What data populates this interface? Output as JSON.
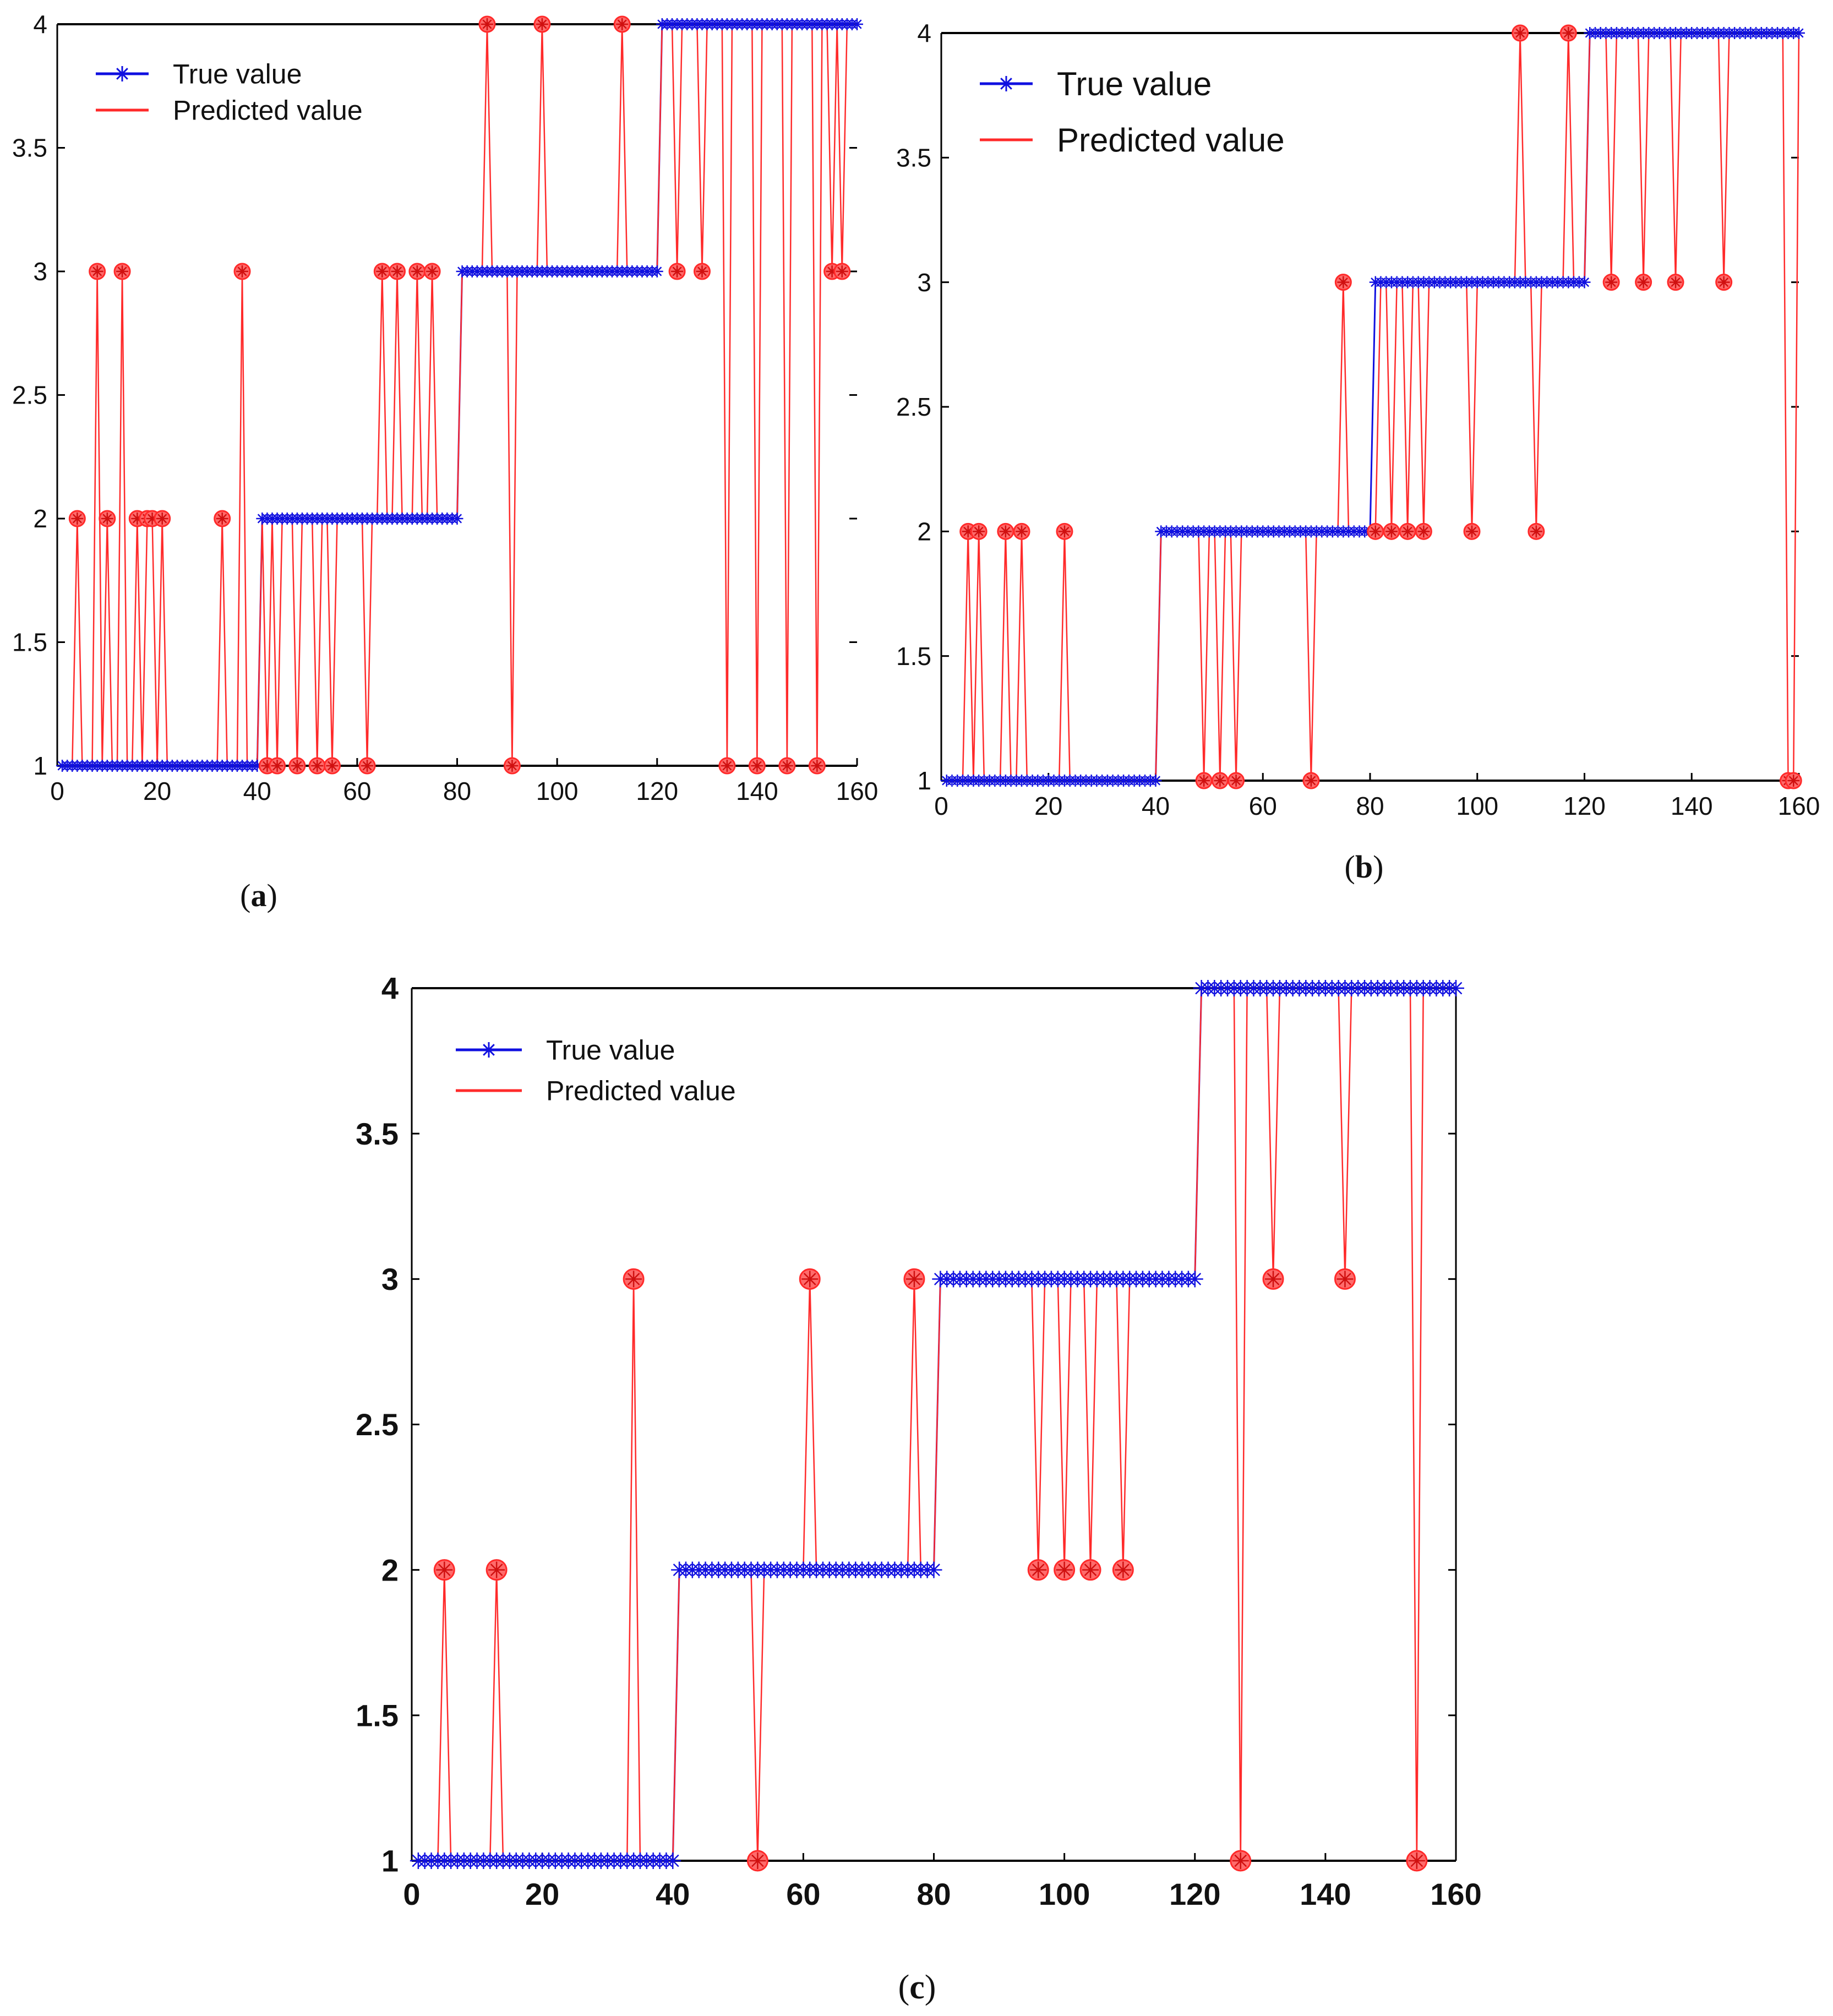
{
  "colors": {
    "true_value": "#1010e0",
    "predicted": "#ff2a2a",
    "predicted_marker_fill": "#ff6b6b",
    "axis": "#000000"
  },
  "chart_data": [
    {
      "id": "a",
      "type": "line",
      "title": "(a)",
      "title_letter": "a",
      "xlim": [
        0,
        160
      ],
      "ylim": [
        1,
        4
      ],
      "xticks": [
        0,
        20,
        40,
        60,
        80,
        100,
        120,
        140,
        160
      ],
      "xtick_labels": [
        "0",
        "20",
        "40",
        "60",
        "80",
        "100",
        "120",
        "140",
        "160"
      ],
      "yticks": [
        1,
        1.5,
        2,
        2.5,
        3,
        3.5,
        4
      ],
      "ytick_labels": [
        "1",
        "1.5",
        "2",
        "2.5",
        "3",
        "3.5",
        "4"
      ],
      "legend": [
        "True value",
        "Predicted value"
      ],
      "legend_position": "top-left",
      "n_points": 160,
      "true_value": [
        {
          "from": 1,
          "to": 40,
          "value": 1
        },
        {
          "from": 41,
          "to": 80,
          "value": 2
        },
        {
          "from": 81,
          "to": 120,
          "value": 3
        },
        {
          "from": 121,
          "to": 160,
          "value": 4
        }
      ],
      "predicted_deviations": [
        [
          4,
          2
        ],
        [
          8,
          3
        ],
        [
          10,
          2
        ],
        [
          13,
          3
        ],
        [
          16,
          2
        ],
        [
          18,
          2
        ],
        [
          19,
          2
        ],
        [
          21,
          2
        ],
        [
          33,
          2
        ],
        [
          37,
          3
        ],
        [
          42,
          1
        ],
        [
          44,
          1
        ],
        [
          48,
          1
        ],
        [
          52,
          1
        ],
        [
          55,
          1
        ],
        [
          62,
          1
        ],
        [
          65,
          3
        ],
        [
          68,
          3
        ],
        [
          72,
          3
        ],
        [
          75,
          3
        ],
        [
          86,
          4
        ],
        [
          97,
          4
        ],
        [
          91,
          1
        ],
        [
          113,
          4
        ],
        [
          124,
          3
        ],
        [
          129,
          3
        ],
        [
          134,
          1
        ],
        [
          140,
          1
        ],
        [
          146,
          1
        ],
        [
          152,
          1
        ],
        [
          155,
          3
        ],
        [
          157,
          3
        ]
      ]
    },
    {
      "id": "b",
      "type": "line",
      "title": "(b)",
      "title_letter": "b",
      "xlim": [
        0,
        160
      ],
      "ylim": [
        1,
        4
      ],
      "xticks": [
        0,
        20,
        40,
        60,
        80,
        100,
        120,
        140,
        160
      ],
      "xtick_labels": [
        "0",
        "20",
        "40",
        "60",
        "80",
        "100",
        "120",
        "140",
        "160"
      ],
      "yticks": [
        1,
        1.5,
        2,
        2.5,
        3,
        3.5,
        4
      ],
      "ytick_labels": [
        "1",
        "1.5",
        "2",
        "2.5",
        "3",
        "3.5",
        "4"
      ],
      "legend": [
        "True value",
        "Predicted value"
      ],
      "legend_position": "top-left",
      "n_points": 160,
      "true_value": [
        {
          "from": 1,
          "to": 40,
          "value": 1
        },
        {
          "from": 41,
          "to": 80,
          "value": 2
        },
        {
          "from": 81,
          "to": 120,
          "value": 3
        },
        {
          "from": 121,
          "to": 160,
          "value": 4
        }
      ],
      "predicted_deviations": [
        [
          5,
          2
        ],
        [
          7,
          2
        ],
        [
          12,
          2
        ],
        [
          15,
          2
        ],
        [
          23,
          2
        ],
        [
          49,
          1
        ],
        [
          52,
          1
        ],
        [
          55,
          1
        ],
        [
          69,
          1
        ],
        [
          75,
          3
        ],
        [
          81,
          2
        ],
        [
          84,
          2
        ],
        [
          87,
          2
        ],
        [
          90,
          2
        ],
        [
          99,
          2
        ],
        [
          108,
          4
        ],
        [
          111,
          2
        ],
        [
          117,
          4
        ],
        [
          125,
          3
        ],
        [
          131,
          3
        ],
        [
          137,
          3
        ],
        [
          146,
          3
        ],
        [
          158,
          1
        ],
        [
          159,
          1
        ]
      ]
    },
    {
      "id": "c",
      "type": "line",
      "title": "(c)",
      "title_letter": "c",
      "xlim": [
        0,
        160
      ],
      "ylim": [
        1,
        4
      ],
      "xticks": [
        0,
        20,
        40,
        60,
        80,
        100,
        120,
        140,
        160
      ],
      "xtick_labels": [
        "0",
        "20",
        "40",
        "60",
        "80",
        "100",
        "120",
        "140",
        "160"
      ],
      "yticks": [
        1,
        1.5,
        2,
        2.5,
        3,
        3.5,
        4
      ],
      "ytick_labels": [
        "1",
        "1.5",
        "2",
        "2.5",
        "3",
        "3.5",
        "4"
      ],
      "legend": [
        "True value",
        "Predicted value"
      ],
      "legend_position": "top-left",
      "n_points": 160,
      "true_value": [
        {
          "from": 1,
          "to": 40,
          "value": 1
        },
        {
          "from": 41,
          "to": 80,
          "value": 2
        },
        {
          "from": 81,
          "to": 120,
          "value": 3
        },
        {
          "from": 121,
          "to": 160,
          "value": 4
        }
      ],
      "predicted_deviations": [
        [
          5,
          2
        ],
        [
          13,
          2
        ],
        [
          34,
          3
        ],
        [
          53,
          1
        ],
        [
          61,
          3
        ],
        [
          77,
          3
        ],
        [
          96,
          2
        ],
        [
          100,
          2
        ],
        [
          104,
          2
        ],
        [
          109,
          2
        ],
        [
          127,
          1
        ],
        [
          132,
          3
        ],
        [
          143,
          3
        ],
        [
          154,
          1
        ]
      ]
    }
  ]
}
